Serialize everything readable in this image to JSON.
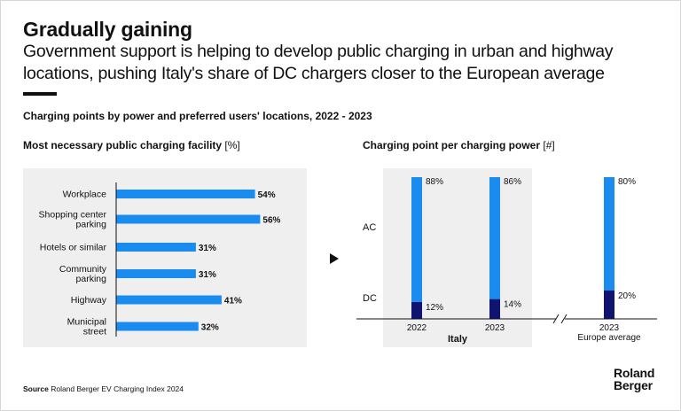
{
  "header": {
    "title": "Gradually gaining",
    "subtitle": "Government support is helping to develop public charging in urban and highway locations, pushing Italy's share of DC chargers closer to the European average"
  },
  "caption": "Charging points by power and preferred users' locations, 2022 - 2023",
  "footer": {
    "source_label": "Source",
    "source_text": "Roland Berger EV Charging Index 2024",
    "logo_line1": "Roland",
    "logo_line2": "Berger"
  },
  "colors": {
    "light_blue": "#1a8cf0",
    "dark_blue": "#0f1470",
    "panel_bg": "#efefef",
    "text": "#111111"
  },
  "chart_data": [
    {
      "type": "bar",
      "orientation": "horizontal",
      "title": "Most necessary public charging facility",
      "unit": "[%]",
      "categories": [
        "Workplace",
        "Shopping center parking",
        "Hotels or similar",
        "Community parking",
        "Highway",
        "Municipal street"
      ],
      "category_lines": [
        [
          "Workplace"
        ],
        [
          "Shopping center",
          "parking"
        ],
        [
          "Hotels or similar"
        ],
        [
          "Community",
          "parking"
        ],
        [
          "Highway"
        ],
        [
          "Municipal",
          "street"
        ]
      ],
      "values": [
        54,
        56,
        31,
        31,
        41,
        32
      ],
      "value_suffix": "%",
      "xlim": [
        0,
        60
      ]
    },
    {
      "type": "bar",
      "stacked": true,
      "title": "Charging point per charging power",
      "unit": "[#]",
      "row_labels": [
        "AC",
        "DC"
      ],
      "categories": [
        "2022",
        "2023",
        "2023"
      ],
      "group_label": "Italy",
      "extra_label": "Europe average",
      "series": [
        {
          "name": "DC",
          "values": [
            12,
            14,
            20
          ]
        },
        {
          "name": "AC",
          "values": [
            88,
            86,
            80
          ]
        }
      ],
      "value_suffix": "%",
      "ylim": [
        0,
        100
      ]
    }
  ]
}
